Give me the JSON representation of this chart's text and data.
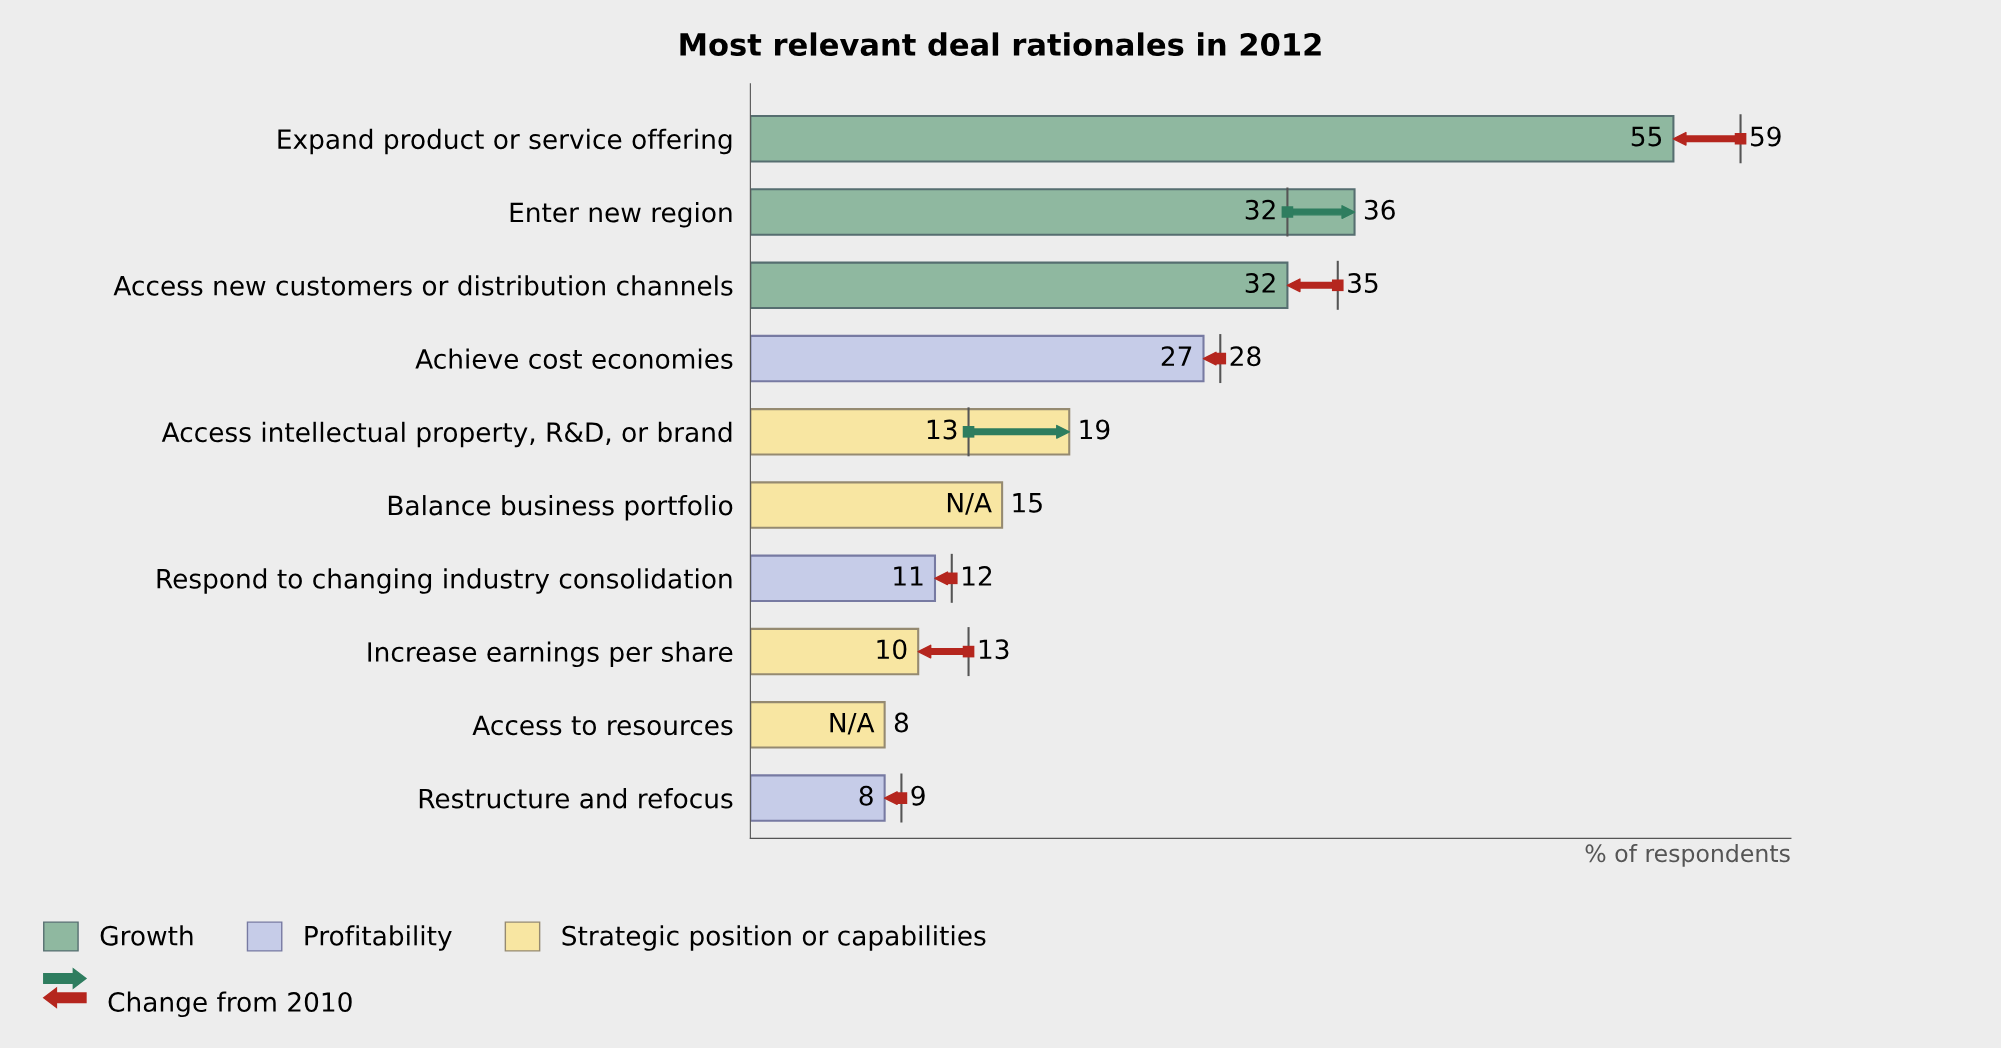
{
  "chart_data": {
    "type": "bar",
    "orientation": "horizontal",
    "title": "Most relevant deal rationales in 2012",
    "categories": [
      "Expand product or service offering",
      "Enter new region",
      "Access new customers or distribution channels",
      "Achieve cost economies",
      "Access intellectual property, R&D, or brand",
      "Balance business portfolio",
      "Respond to changing industry consolidation",
      "Increase earnings per share",
      "Access to resources",
      "Restructure and refocus"
    ],
    "series": [
      {
        "name": "Growth",
        "color": "#8fb8a0",
        "values": [
          55,
          36,
          32,
          null,
          null,
          null,
          null,
          null,
          null,
          null
        ],
        "value_labels": [
          "55",
          "36",
          "32",
          null,
          null,
          null,
          null,
          null,
          null,
          null
        ]
      },
      {
        "name": "Profitability",
        "color": "#c6cce8",
        "values": [
          null,
          null,
          null,
          27,
          null,
          null,
          11,
          null,
          null,
          8
        ],
        "value_labels": [
          null,
          null,
          null,
          "27",
          null,
          null,
          "11",
          null,
          null,
          "8"
        ]
      },
      {
        "name": "Strategic position or capabilities",
        "color": "#f8e6a2",
        "values": [
          null,
          null,
          null,
          null,
          19,
          15,
          null,
          10,
          8,
          null
        ],
        "value_labels": [
          null,
          null,
          null,
          null,
          "19",
          "15",
          null,
          "10",
          "8",
          null
        ]
      },
      {
        "name": "Change from 2010",
        "type": "scatter",
        "marker": "square",
        "values": [
          59,
          32,
          35,
          28,
          13,
          null,
          12,
          13,
          null,
          9
        ],
        "colors": [
          "#b5261e",
          "#2e7d5f",
          "#b5261e",
          "#b5261e",
          "#2e7d5f",
          null,
          "#b5261e",
          "#b5261e",
          null,
          "#b5261e"
        ],
        "value_labels": [
          "59",
          "32",
          "35",
          "28",
          "13",
          "N/A",
          "12",
          "13",
          "N/A",
          "9"
        ]
      }
    ],
    "xlim": [
      0,
      62
    ],
    "xlabel": "% of respondents",
    "tick_labels": "y",
    "grid": false,
    "legend": "bottom"
  }
}
